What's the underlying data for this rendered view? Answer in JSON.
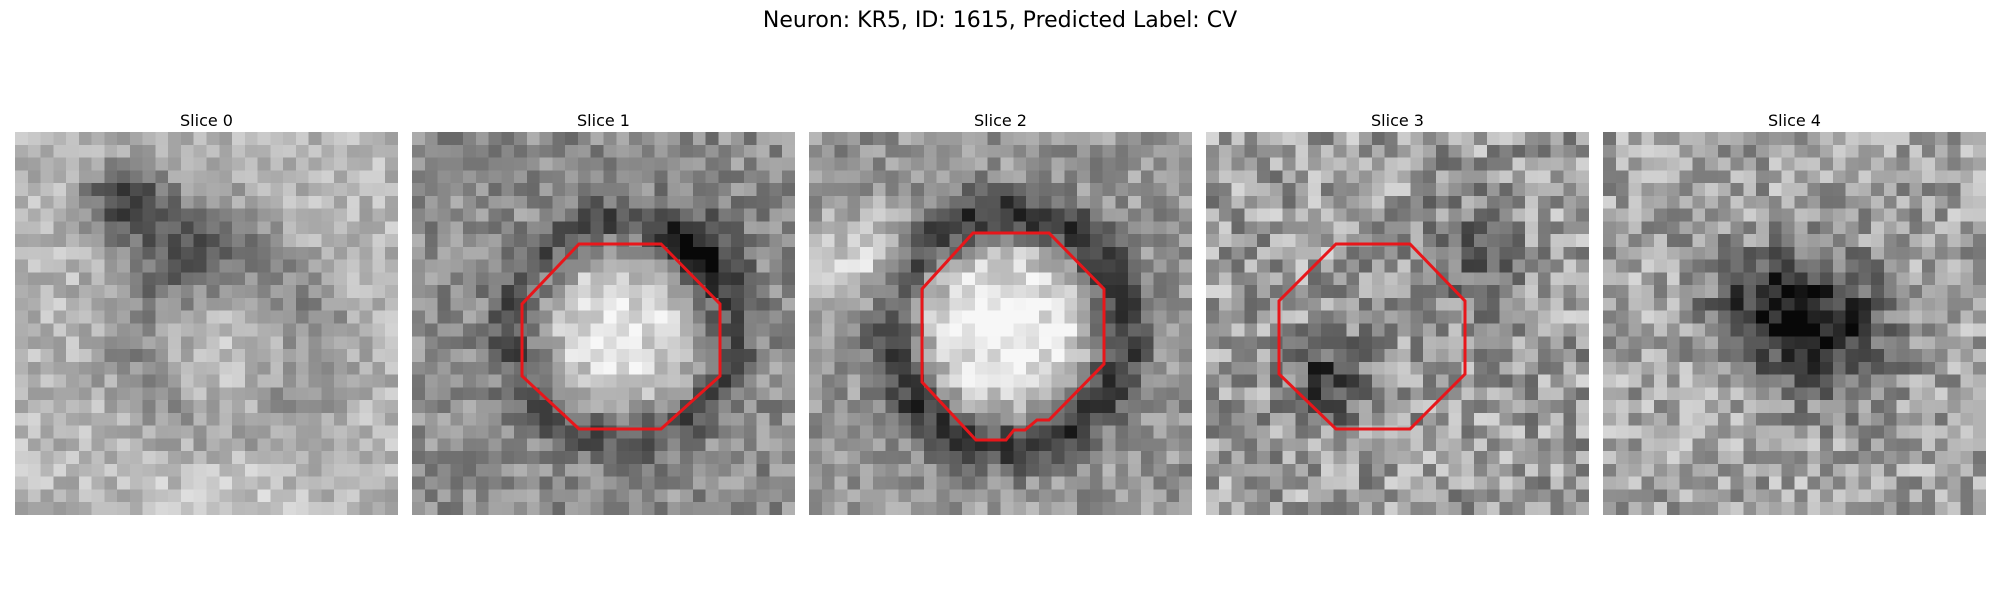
{
  "figure": {
    "title": "Neuron: KR5, ID: 1615, Predicted Label: CV"
  },
  "slices": [
    {
      "label": "Slice 0",
      "roi": false
    },
    {
      "label": "Slice 1",
      "roi": true
    },
    {
      "label": "Slice 2",
      "roi": true
    },
    {
      "label": "Slice 3",
      "roi": true
    },
    {
      "label": "Slice 4",
      "roi": false
    }
  ],
  "colors": {
    "roi_outline": "#e8161a"
  }
}
